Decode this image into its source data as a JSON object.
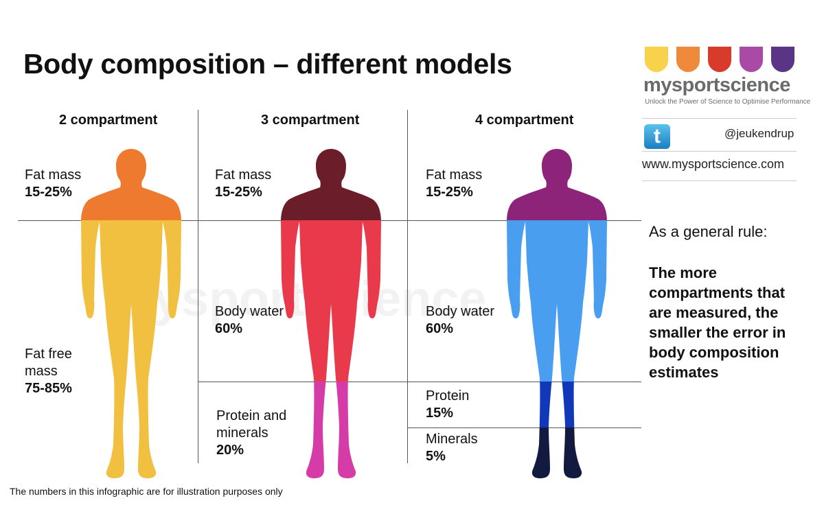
{
  "title": "Body composition – different models",
  "branding": {
    "name": "mysportscience",
    "tagline": "Unlock the Power of Science to Optimise Performance",
    "handle": "@jeukendrup",
    "website": "www.mysportscience.com",
    "watermark": "mysportscience",
    "logo_colors": [
      "#f7d24a",
      "#ef8a3a",
      "#d83a2c",
      "#a84aa6",
      "#5a3586"
    ],
    "icon": "twitter-icon"
  },
  "models": [
    {
      "heading": "2 compartment",
      "compartments": [
        {
          "name": "Fat mass",
          "value": "15-25%",
          "color": "#ee7a30"
        },
        {
          "name_lines": [
            "Fat free",
            "mass"
          ],
          "value": "75-85%",
          "color": "#f1c040"
        }
      ]
    },
    {
      "heading": "3 compartment",
      "compartments": [
        {
          "name": "Fat mass",
          "value": "15-25%",
          "color": "#6b1d2a"
        },
        {
          "name": "Body water",
          "value": "60%",
          "color": "#e83a4a"
        },
        {
          "name_lines": [
            "Protein and",
            "minerals"
          ],
          "value": "20%",
          "color": "#d63ca8"
        }
      ]
    },
    {
      "heading": "4 compartment",
      "compartments": [
        {
          "name": "Fat mass",
          "value": "15-25%",
          "color": "#8e237a"
        },
        {
          "name": "Body water",
          "value": "60%",
          "color": "#4a9ef0"
        },
        {
          "name": "Protein",
          "value": "15%",
          "color": "#1038b8"
        },
        {
          "name": "Minerals",
          "value": "5%",
          "color": "#121a40"
        }
      ]
    }
  ],
  "general_rule": {
    "intro": "As a general rule:",
    "text": "The more compartments that are measured, the smaller the error in body composition estimates"
  },
  "footnote": "The numbers in this infographic are for illustration purposes only"
}
